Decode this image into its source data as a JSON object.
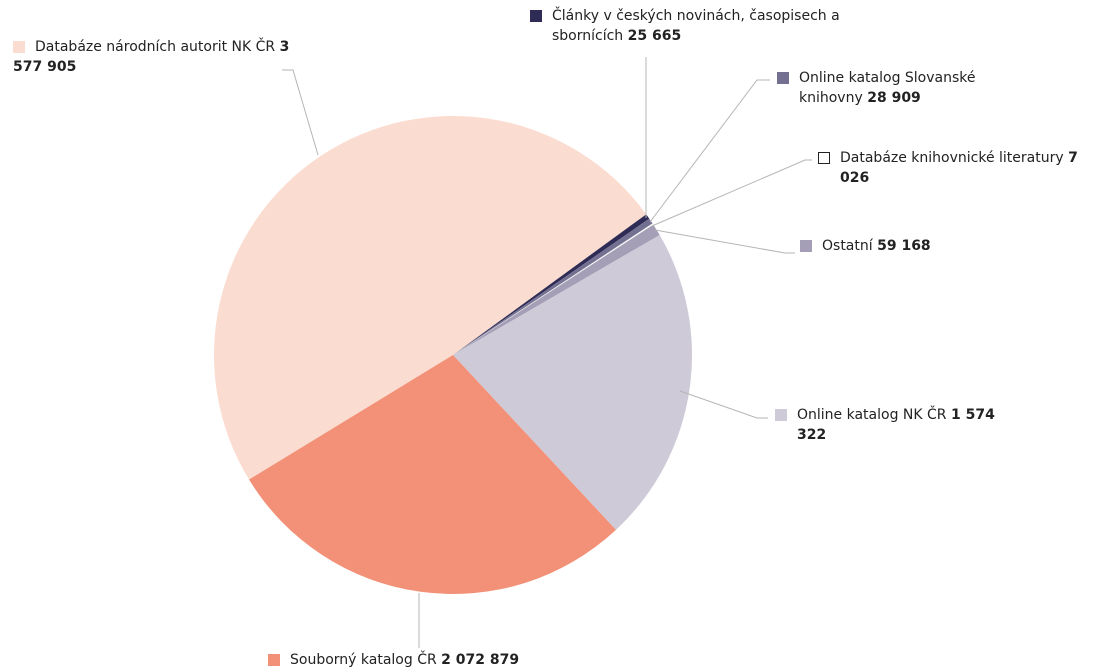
{
  "chart_data": {
    "type": "pie",
    "categories": [
      "Databáze národních autorit NK ČR",
      "Články v českých novinách, časopisech a sbornících",
      "Online katalog Slovanské knihovny",
      "Databáze knihovnické literatury",
      "Ostatní",
      "Online katalog NK ČR",
      "Souborný katalog ČR"
    ],
    "values": [
      3577905,
      25665,
      28909,
      7026,
      59168,
      1574322,
      2072879
    ],
    "value_labels": [
      "3 577 905",
      "25 665",
      "28 909",
      "7 026",
      "59 168",
      "1 574 322",
      "2 072 879"
    ],
    "colors": [
      "#fbdcd0",
      "#2e2c55",
      "#747092",
      "#ffffff",
      "#a49fb6",
      "#cecad8",
      "#f29177"
    ]
  }
}
